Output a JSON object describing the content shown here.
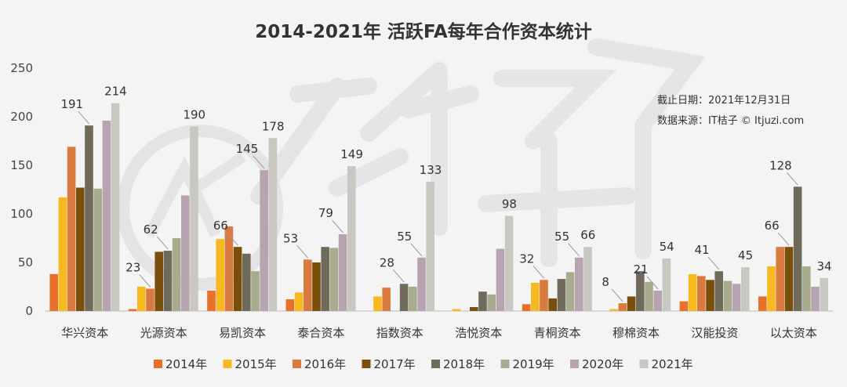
{
  "chart_data": {
    "type": "bar",
    "title": "2014-2021年 活跃FA每年合作资本统计",
    "notes": [
      "截止日期：2021年12月31日",
      "数据来源：IT桔子 © Itjuzi.com"
    ],
    "watermark": "IT桔子 ITJUZI.COM",
    "categories": [
      "华兴资本",
      "光源资本",
      "易凯资本",
      "泰合资本",
      "指数资本",
      "浩悦资本",
      "青桐资本",
      "穆棉资本",
      "汉能投资",
      "以太资本"
    ],
    "ylim": [
      0,
      250
    ],
    "yticks": [
      0,
      50,
      100,
      150,
      200,
      250
    ],
    "grid": false,
    "legend_position": "bottom",
    "series": [
      {
        "name": "2014年",
        "color": "#e8702a",
        "values": [
          38,
          2,
          21,
          12,
          0,
          0,
          7,
          0,
          10,
          15
        ]
      },
      {
        "name": "2015年",
        "color": "#f8b81f",
        "values": [
          117,
          25,
          74,
          19,
          15,
          2,
          29,
          2,
          38,
          46
        ]
      },
      {
        "name": "2016年",
        "color": "#d97b3f",
        "values": [
          169,
          23,
          87,
          53,
          24,
          0,
          32,
          8,
          36,
          66
        ]
      },
      {
        "name": "2017年",
        "color": "#7a4f0c",
        "values": [
          127,
          61,
          66,
          50,
          0,
          4,
          13,
          15,
          32,
          66
        ]
      },
      {
        "name": "2018年",
        "color": "#6f6a5a",
        "values": [
          191,
          62,
          59,
          66,
          28,
          20,
          33,
          41,
          41,
          128
        ]
      },
      {
        "name": "2019年",
        "color": "#a9ab8e",
        "values": [
          126,
          75,
          41,
          65,
          25,
          17,
          40,
          30,
          31,
          46
        ]
      },
      {
        "name": "2020年",
        "color": "#b8a3b1",
        "values": [
          196,
          119,
          145,
          79,
          55,
          64,
          55,
          21,
          28,
          25
        ]
      },
      {
        "name": "2021年",
        "color": "#c9c7c2",
        "values": [
          214,
          190,
          178,
          149,
          133,
          98,
          66,
          54,
          45,
          34
        ]
      }
    ],
    "data_labels": [
      {
        "text": "191",
        "category": 0,
        "series": 4
      },
      {
        "text": "214",
        "category": 0,
        "series": 7
      },
      {
        "text": "23",
        "category": 1,
        "series": 2
      },
      {
        "text": "62",
        "category": 1,
        "series": 4
      },
      {
        "text": "190",
        "category": 1,
        "series": 7
      },
      {
        "text": "66",
        "category": 2,
        "series": 3
      },
      {
        "text": "145",
        "category": 2,
        "series": 6
      },
      {
        "text": "178",
        "category": 2,
        "series": 7
      },
      {
        "text": "53",
        "category": 3,
        "series": 2
      },
      {
        "text": "79",
        "category": 3,
        "series": 6
      },
      {
        "text": "149",
        "category": 3,
        "series": 7
      },
      {
        "text": "28",
        "category": 4,
        "series": 4
      },
      {
        "text": "55",
        "category": 4,
        "series": 6
      },
      {
        "text": "133",
        "category": 4,
        "series": 7
      },
      {
        "text": "98",
        "category": 5,
        "series": 7
      },
      {
        "text": "32",
        "category": 6,
        "series": 2
      },
      {
        "text": "55",
        "category": 6,
        "series": 6
      },
      {
        "text": "66",
        "category": 6,
        "series": 7
      },
      {
        "text": "8",
        "category": 7,
        "series": 2
      },
      {
        "text": "21",
        "category": 7,
        "series": 6
      },
      {
        "text": "54",
        "category": 7,
        "series": 7
      },
      {
        "text": "41",
        "category": 8,
        "series": 4
      },
      {
        "text": "45",
        "category": 8,
        "series": 7
      },
      {
        "text": "66",
        "category": 9,
        "series": 3
      },
      {
        "text": "128",
        "category": 9,
        "series": 4
      },
      {
        "text": "34",
        "category": 9,
        "series": 7
      }
    ]
  }
}
